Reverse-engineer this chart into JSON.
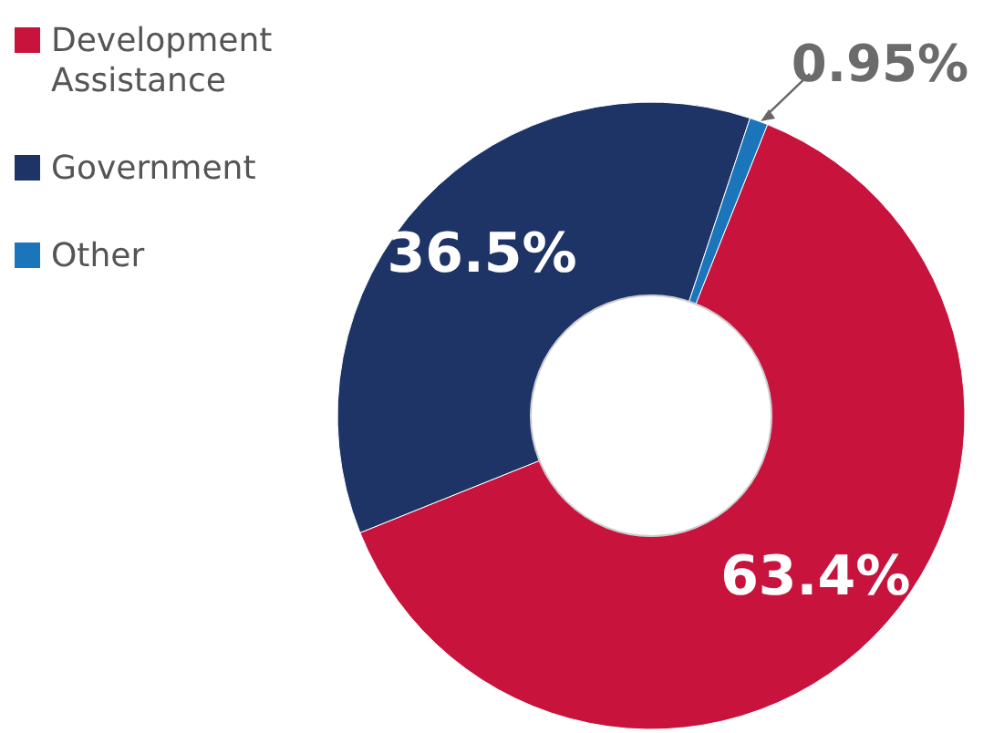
{
  "chart_data": {
    "type": "donut",
    "categories": [
      "Development Assistance",
      "Government",
      "Other"
    ],
    "values": [
      63.4,
      36.5,
      0.95
    ],
    "colors": [
      "#c8143c",
      "#1f3466",
      "#1a75bb"
    ],
    "value_labels": [
      "63.4%",
      "36.5%",
      "0.95%"
    ],
    "legend": "top left"
  }
}
